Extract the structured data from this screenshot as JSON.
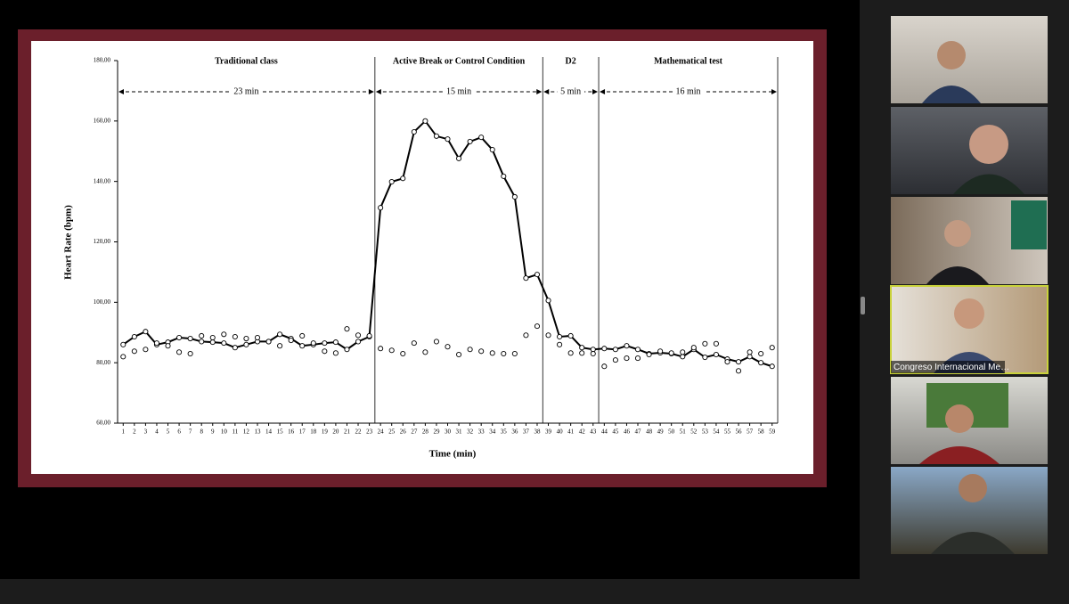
{
  "chart_data": {
    "type": "line",
    "ylabel": "Heart Rate (bpm)",
    "xlabel": "Time (min)",
    "x": [
      1,
      2,
      3,
      4,
      5,
      6,
      7,
      8,
      9,
      10,
      11,
      12,
      13,
      14,
      15,
      16,
      17,
      18,
      19,
      20,
      21,
      22,
      23,
      24,
      25,
      26,
      27,
      28,
      29,
      30,
      31,
      32,
      33,
      34,
      35,
      36,
      37,
      38,
      39,
      40,
      41,
      42,
      43,
      44,
      45,
      46,
      47,
      48,
      49,
      50,
      51,
      52,
      53,
      54,
      55,
      56,
      57,
      58,
      59
    ],
    "xlim": [
      0.5,
      59.5
    ],
    "ylim": [
      60,
      180
    ],
    "yticks": [
      {
        "value": 60,
        "label": "60,00"
      },
      {
        "value": 80,
        "label": "80,00"
      },
      {
        "value": 100,
        "label": "100,00"
      },
      {
        "value": 120,
        "label": "120,00"
      },
      {
        "value": 140,
        "label": "140,00"
      },
      {
        "value": 160,
        "label": "160,00"
      },
      {
        "value": 180,
        "label": "180,00"
      }
    ],
    "sections": [
      {
        "label": "Traditional class",
        "duration": {
          "value": 23,
          "label": "23 min"
        }
      },
      {
        "label": "Active Break or Control Condition",
        "duration": {
          "value": 15,
          "label": "15 min"
        }
      },
      {
        "label": "D2",
        "duration": {
          "value": 5,
          "label": "5 min"
        }
      },
      {
        "label": "Mathematical test",
        "duration": {
          "value": 16,
          "label": "16 min"
        }
      }
    ],
    "series": [
      {
        "color": "#000000",
        "line_style": "solid",
        "values": [
          86,
          88.6,
          90.3,
          86,
          86.8,
          88.3,
          88,
          87,
          86.8,
          86.5,
          85,
          86,
          87,
          87,
          89.4,
          88,
          85.6,
          86,
          86.5,
          86.8,
          84.4,
          87,
          88.6,
          131.3,
          139.9,
          141,
          156.4,
          160,
          155,
          154,
          147.6,
          153.2,
          154.6,
          150.5,
          141.7,
          134.9,
          108,
          109.2,
          100.6,
          88.6,
          88.9,
          85,
          84.4,
          84.7,
          84.4,
          85.6,
          84.4,
          83,
          83.3,
          83,
          82,
          84.4,
          81.8,
          82.7,
          81.2,
          80.3,
          82,
          80,
          78.8
        ]
      },
      {
        "color": "#000000",
        "line_style": "none",
        "values": [
          82,
          83.8,
          84.4,
          86.5,
          85.6,
          83.5,
          83,
          88.9,
          88.3,
          89.4,
          88.6,
          88,
          88.3,
          87,
          85.6,
          87.4,
          88.9,
          86.5,
          83.8,
          83.2,
          91.2,
          89.1,
          88.9,
          84.7,
          84.1,
          83,
          86.5,
          83.5,
          87,
          85.3,
          82.7,
          84.4,
          83.8,
          83.2,
          83,
          83,
          89.1,
          92.1,
          89.1,
          86,
          83.2,
          83.2,
          83,
          78.8,
          80.9,
          81.5,
          81.5,
          82.7,
          83.8,
          83.2,
          83.5,
          85,
          86.3,
          86.3,
          80.3,
          77.3,
          83.5,
          83,
          85
        ]
      }
    ]
  },
  "video_tiles": {
    "name_label": "Congreso Internacional Me…"
  }
}
